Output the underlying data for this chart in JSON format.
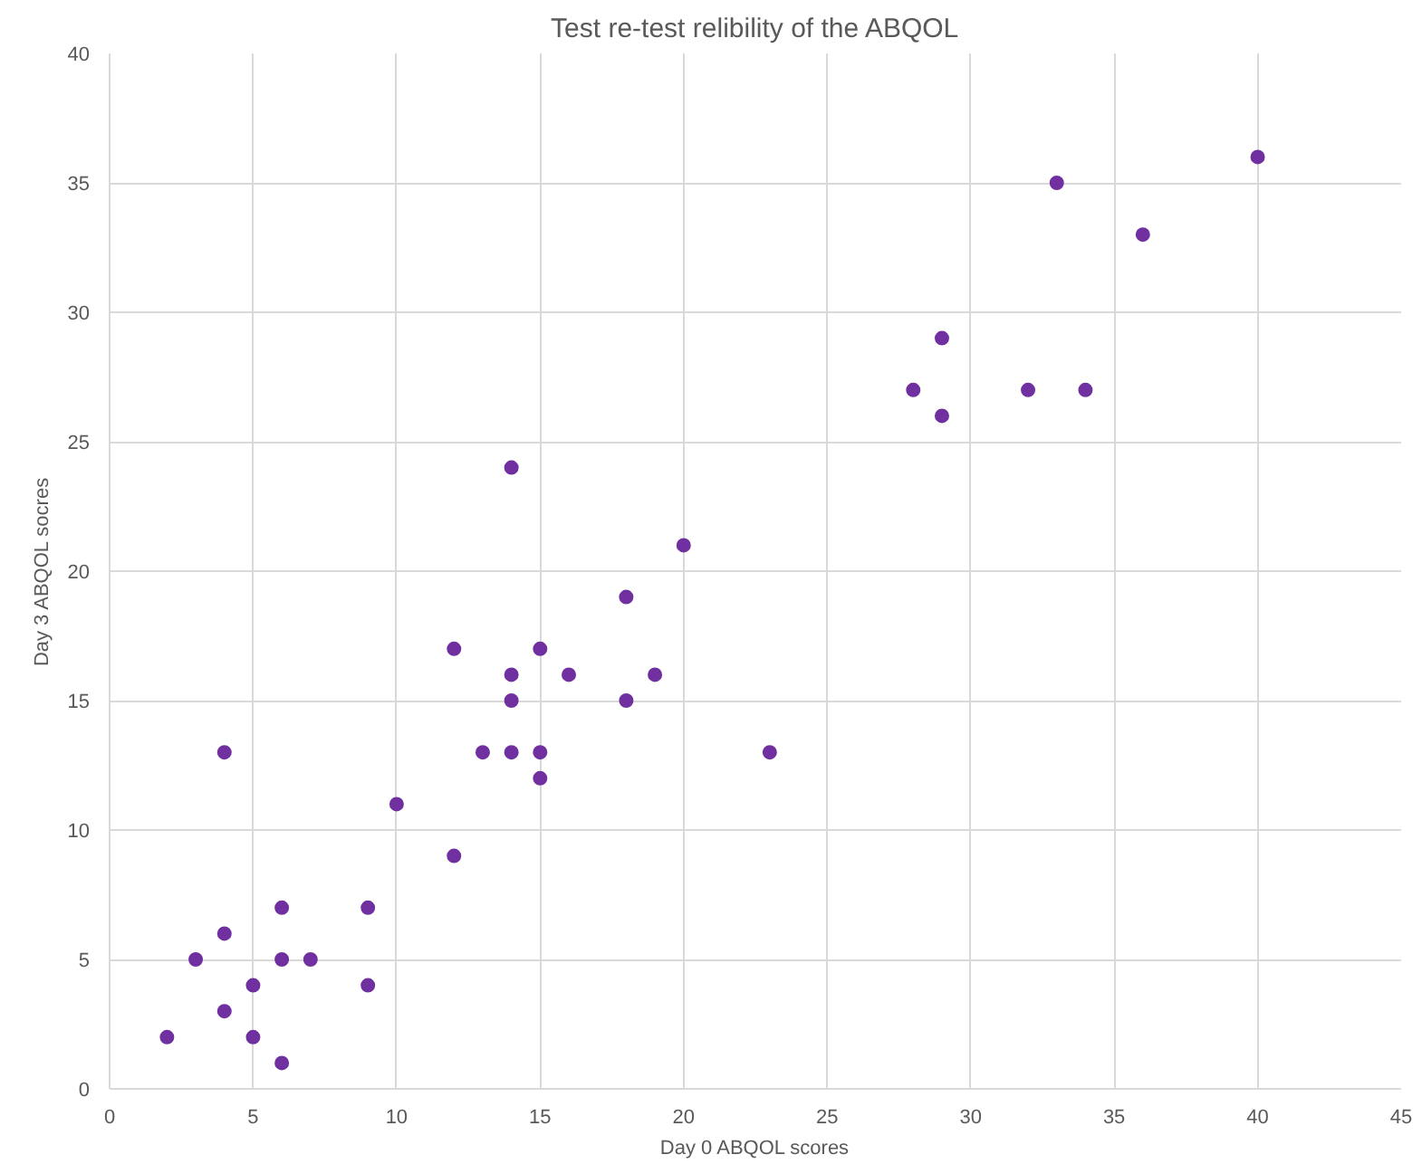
{
  "chart_data": {
    "type": "scatter",
    "title": "Test re-test relibility of the ABQOL",
    "xlabel": "Day 0 ABQOL scores",
    "ylabel": "Day 3 ABQOL socres",
    "x": [
      2,
      3,
      4,
      4,
      4,
      5,
      5,
      6,
      6,
      6,
      7,
      9,
      9,
      10,
      12,
      12,
      13,
      14,
      14,
      14,
      14,
      15,
      15,
      15,
      16,
      18,
      18,
      19,
      20,
      23,
      28,
      29,
      29,
      32,
      33,
      34,
      36,
      40
    ],
    "series": [
      {
        "color": "#7030a0",
        "values": [
          2,
          5,
          13,
          6,
          3,
          4,
          2,
          7,
          5,
          1,
          5,
          7,
          4,
          11,
          17,
          9,
          13,
          24,
          16,
          15,
          13,
          17,
          13,
          12,
          16,
          19,
          15,
          16,
          21,
          13,
          27,
          29,
          26,
          27,
          35,
          27,
          33,
          36
        ]
      }
    ],
    "xlim": [
      0,
      45
    ],
    "ylim": [
      0,
      40
    ],
    "xticks": [
      0,
      5,
      10,
      15,
      20,
      25,
      30,
      35,
      40,
      45
    ],
    "yticks": [
      0,
      5,
      10,
      15,
      20,
      25,
      30,
      35,
      40
    ],
    "grid": true,
    "marker": "circle"
  }
}
